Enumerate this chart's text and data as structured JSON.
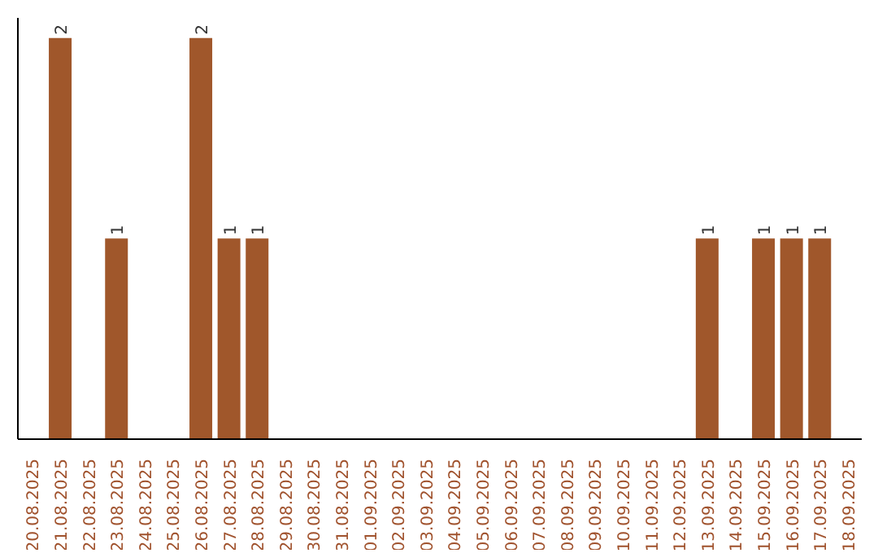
{
  "chart_data": {
    "type": "bar",
    "categories": [
      "20.08.2025",
      "21.08.2025",
      "22.08.2025",
      "23.08.2025",
      "24.08.2025",
      "25.08.2025",
      "26.08.2025",
      "27.08.2025",
      "28.08.2025",
      "29.08.2025",
      "30.08.2025",
      "31.08.2025",
      "01.09.2025",
      "02.09.2025",
      "03.09.2025",
      "04.09.2025",
      "05.09.2025",
      "06.09.2025",
      "07.09.2025",
      "08.09.2025",
      "09.09.2025",
      "10.09.2025",
      "11.09.2025",
      "12.09.2025",
      "13.09.2025",
      "14.09.2025",
      "15.09.2025",
      "16.09.2025",
      "17.09.2025",
      "18.09.2025"
    ],
    "values": [
      0,
      2,
      0,
      1,
      0,
      0,
      2,
      1,
      1,
      0,
      0,
      0,
      0,
      0,
      0,
      0,
      0,
      0,
      0,
      0,
      0,
      0,
      0,
      0,
      1,
      0,
      1,
      1,
      1,
      0
    ],
    "value_labels": [
      null,
      "2",
      null,
      "1",
      null,
      null,
      "2",
      "1",
      "1",
      null,
      null,
      null,
      null,
      null,
      null,
      null,
      null,
      null,
      null,
      null,
      null,
      null,
      null,
      null,
      "1",
      null,
      "1",
      "1",
      "1",
      null
    ],
    "color": "#a0572b",
    "ylim": [
      0,
      2.1
    ],
    "tick_labels": "x",
    "grid": false,
    "legend": false
  }
}
